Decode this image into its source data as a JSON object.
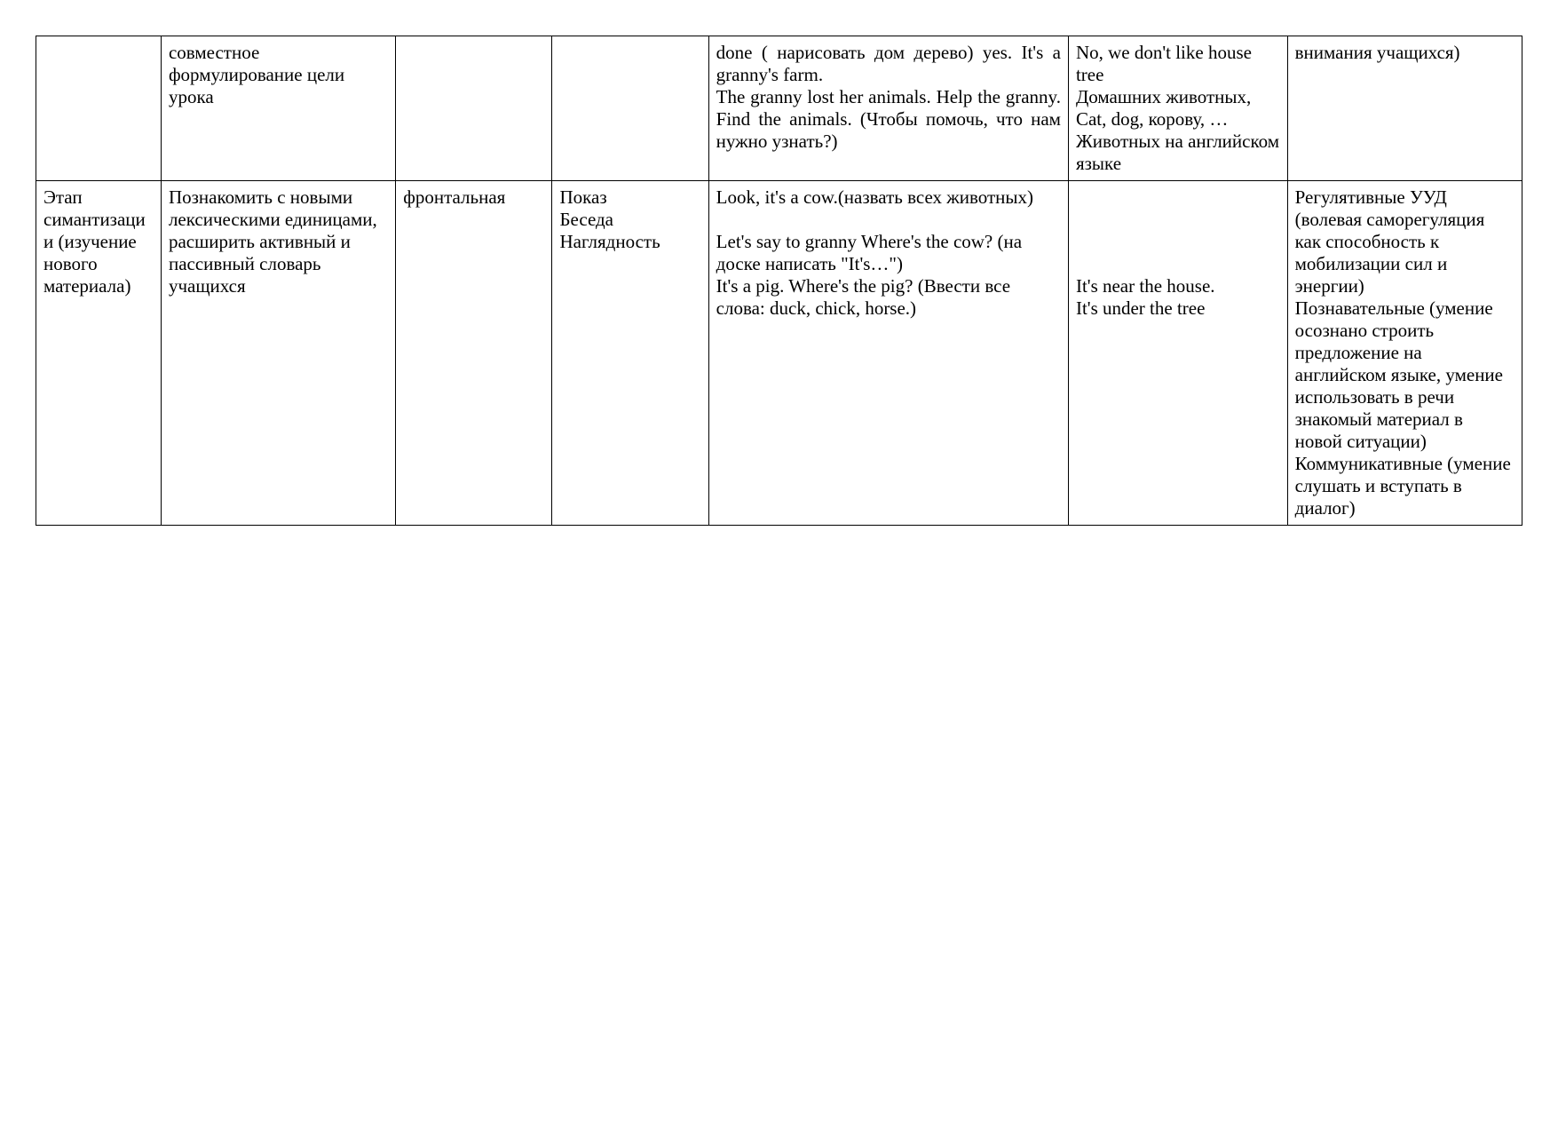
{
  "table": {
    "columns": [
      {
        "width": "8%"
      },
      {
        "width": "15%"
      },
      {
        "width": "10%"
      },
      {
        "width": "10%"
      },
      {
        "width": "23%"
      },
      {
        "width": "14%"
      },
      {
        "width": "15%"
      }
    ],
    "border_color": "#000000",
    "background_color": "#ffffff",
    "font_family": "Times New Roman",
    "font_size": 21,
    "text_color": "#000000",
    "rows": [
      {
        "cells": [
          {
            "text": ""
          },
          {
            "text": "совместное формулирование цели урока"
          },
          {
            "text": ""
          },
          {
            "text": ""
          },
          {
            "text": "done ( нарисовать дом дерево) yes. It's a granny's farm.\nThe granny lost her animals. Help the granny. Find the animals. (Чтобы помочь, что нам нужно узнать?)",
            "justify": true
          },
          {
            "text": "No, we don't like house\ntree\nДомашних животных,\nCat, dog, корову, …\nЖивотных на английском языке"
          },
          {
            "text": "внимания учащихся)"
          }
        ]
      },
      {
        "cells": [
          {
            "text": "Этап симантизации (изучение нового материала)"
          },
          {
            "text": "Познакомить с новыми лексическими единицами, расширить активный и пассивный словарь учащихся"
          },
          {
            "text": "фронтальная"
          },
          {
            "text": "Показ\nБеседа\nНаглядность"
          },
          {
            "text": "Look, it's a cow.(назвать всех животных)\n\nLet's say to granny Where's the cow? (на доске написать \"It's…\")\nIt's a pig. Where's the pig? (Ввести все слова: duck, chick, horse.)"
          },
          {
            "text": "\n\n\n\nIt's near the house.\nIt's under the tree"
          },
          {
            "text": "Регулятивные УУД (волевая саморегуляция как способность к мобилизации сил и энергии)\nПознавательные (умение осознано строить предложение на английском языке, умение использовать в речи знакомый материал в новой ситуации)\nКоммуникативные (умение слушать и вступать в диалог)"
          }
        ]
      }
    ]
  }
}
